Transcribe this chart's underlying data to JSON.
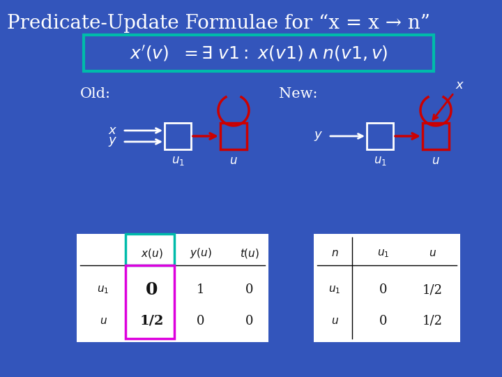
{
  "bg_color": "#3355bb",
  "title": "Predicate-Update Formulae for “x = x → n”",
  "title_color": "#ffffff",
  "title_fontsize": 20,
  "formula_box_color": "#00bbaa",
  "formula_text_color": "#ffffff",
  "formula_fontsize": 18,
  "white_color": "#ffffff",
  "red_color": "#cc0000",
  "teal_color": "#00bbaa",
  "magenta_color": "#dd00dd",
  "text_color_table": "#111111"
}
